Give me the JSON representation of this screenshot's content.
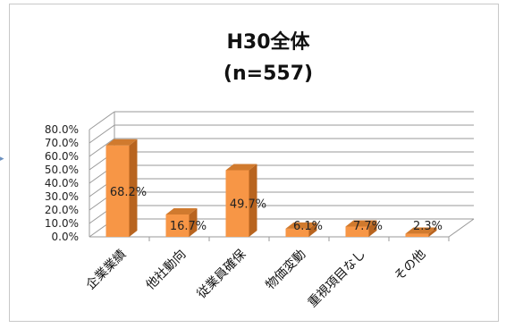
{
  "chart_data": {
    "type": "bar",
    "title": "H30全体",
    "subtitle": "(n=557)",
    "categories": [
      "企業業績",
      "他社動向",
      "従業員確保",
      "物価変動",
      "重視項目なし",
      "その他"
    ],
    "values": [
      68.2,
      16.7,
      49.7,
      6.1,
      7.7,
      2.3
    ],
    "data_labels": [
      "68.2%",
      "16.7%",
      "49.7%",
      "6.1%",
      "7.7%",
      "2.3%"
    ],
    "yticks": [
      "0.0%",
      "10.0%",
      "20.0%",
      "30.0%",
      "40.0%",
      "50.0%",
      "60.0%",
      "70.0%",
      "80.0%"
    ],
    "ylim": [
      0,
      80
    ],
    "grid": true,
    "bar_style": "3d-column",
    "colors": {
      "bar_front": "#F79646",
      "bar_side": "#B8641F",
      "bar_top": "#D07A2E",
      "grid": "#9a9a9a"
    }
  }
}
